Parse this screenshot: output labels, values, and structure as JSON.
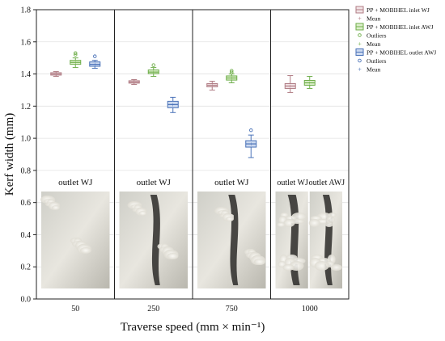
{
  "chart_data": {
    "type": "box",
    "xlabel": "Traverse speed (mm × min⁻¹)",
    "ylabel": "Kerf width (mm)",
    "ylim": [
      0.0,
      1.8
    ],
    "yticks": [
      "0.0",
      "0.2",
      "0.4",
      "0.6",
      "0.8",
      "1.0",
      "1.2",
      "1.4",
      "1.6",
      "1.8"
    ],
    "categories": [
      "50",
      "250",
      "750",
      "1000"
    ],
    "grid": true,
    "legend_position": "right",
    "series": [
      {
        "name": "PP + MOBIHEL inlet WJ",
        "color": "#b07c84",
        "fill": "#f2e4e6",
        "boxes": [
          {
            "category": "50",
            "whisker_low": 1.385,
            "q1": 1.393,
            "median": 1.4,
            "q3": 1.408,
            "whisker_high": 1.415,
            "mean": 1.4,
            "outliers": []
          },
          {
            "category": "250",
            "whisker_low": 1.335,
            "q1": 1.343,
            "median": 1.35,
            "q3": 1.358,
            "whisker_high": 1.365,
            "mean": 1.35,
            "outliers": []
          },
          {
            "category": "750",
            "whisker_low": 1.3,
            "q1": 1.32,
            "median": 1.33,
            "q3": 1.34,
            "whisker_high": 1.355,
            "mean": 1.33,
            "outliers": []
          },
          {
            "category": "1000",
            "whisker_low": 1.285,
            "q1": 1.31,
            "median": 1.325,
            "q3": 1.34,
            "whisker_high": 1.39,
            "mean": 1.325,
            "outliers": []
          }
        ]
      },
      {
        "name": "PP + MOBIHEL inlet AWJ",
        "color": "#6fae4a",
        "fill": "#dcefcb",
        "boxes": [
          {
            "category": "50",
            "whisker_low": 1.44,
            "q1": 1.46,
            "median": 1.472,
            "q3": 1.485,
            "whisker_high": 1.5,
            "mean": 1.472,
            "outliers": [
              1.52,
              1.53
            ]
          },
          {
            "category": "250",
            "whisker_low": 1.385,
            "q1": 1.402,
            "median": 1.412,
            "q3": 1.425,
            "whisker_high": 1.44,
            "mean": 1.412,
            "outliers": [
              1.455
            ]
          },
          {
            "category": "750",
            "whisker_low": 1.345,
            "q1": 1.362,
            "median": 1.375,
            "q3": 1.388,
            "whisker_high": 1.4,
            "mean": 1.375,
            "outliers": [
              1.41,
              1.42
            ]
          },
          {
            "category": "1000",
            "whisker_low": 1.31,
            "q1": 1.33,
            "median": 1.345,
            "q3": 1.36,
            "whisker_high": 1.385,
            "mean": 1.345,
            "outliers": []
          }
        ]
      },
      {
        "name": "PP + MOBIHEL outlet AWJ",
        "color": "#4a72b8",
        "fill": "#cddaf0",
        "boxes": [
          {
            "category": "50",
            "whisker_low": 1.435,
            "q1": 1.448,
            "median": 1.46,
            "q3": 1.475,
            "whisker_high": 1.485,
            "mean": 1.46,
            "outliers": [
              1.51
            ]
          },
          {
            "category": "250",
            "whisker_low": 1.16,
            "q1": 1.19,
            "median": 1.21,
            "q3": 1.23,
            "whisker_high": 1.255,
            "mean": 1.21,
            "outliers": []
          },
          {
            "category": "750",
            "whisker_low": 0.88,
            "q1": 0.945,
            "median": 0.965,
            "q3": 0.985,
            "whisker_high": 1.02,
            "mean": 0.965,
            "outliers": [
              1.05
            ]
          }
        ]
      }
    ],
    "legend": [
      {
        "kind": "box",
        "label": "PP + MOBIHEL inlet WJ",
        "color": "#b07c84",
        "fill": "#f2e4e6"
      },
      {
        "kind": "mean",
        "label": "Mean",
        "color": "#b07c84"
      },
      {
        "kind": "box",
        "label": "PP + MOBIHEL inlet AWJ",
        "color": "#6fae4a",
        "fill": "#dcefcb"
      },
      {
        "kind": "outlier",
        "label": "Outliers",
        "color": "#6fae4a"
      },
      {
        "kind": "mean",
        "label": "Mean",
        "color": "#6fae4a"
      },
      {
        "kind": "box",
        "label": "PP + MOBIHEL outlet AWJ",
        "color": "#4a72b8",
        "fill": "#cddaf0"
      },
      {
        "kind": "outlier",
        "label": "Outliers",
        "color": "#4a72b8"
      },
      {
        "kind": "mean",
        "label": "Mean",
        "color": "#4a72b8"
      }
    ],
    "photo_panels": [
      {
        "category": "50",
        "captions": [
          "outlet WJ"
        ]
      },
      {
        "category": "250",
        "captions": [
          "outlet WJ"
        ]
      },
      {
        "category": "750",
        "captions": [
          "outlet WJ"
        ]
      },
      {
        "category": "1000",
        "captions": [
          "outlet WJ",
          "outlet AWJ"
        ]
      }
    ]
  }
}
